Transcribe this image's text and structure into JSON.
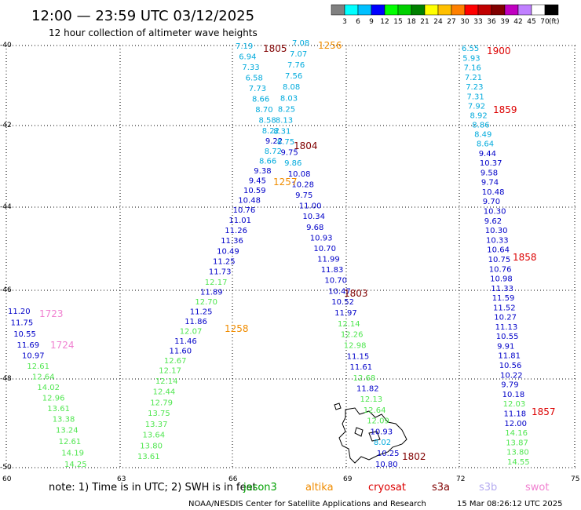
{
  "title": "12:00 — 23:59 UTC 03/12/2025",
  "subtitle": "12 hour collection of altimeter wave heights",
  "scale": {
    "labels": [
      "3",
      "6",
      "9",
      "12",
      "15",
      "18",
      "21",
      "24",
      "27",
      "30",
      "33",
      "36",
      "39",
      "42",
      "45",
      "70"
    ],
    "unit": "(ft)",
    "colors": [
      "#808080",
      "#00ffff",
      "#00c0ff",
      "#0000ff",
      "#00ff00",
      "#00d000",
      "#008000",
      "#ffff00",
      "#ffc000",
      "#ff8000",
      "#ff0000",
      "#c00000",
      "#800000",
      "#c000c0",
      "#c080ff",
      "#ffffff",
      "#000000"
    ]
  },
  "axes": {
    "lat_labels": [
      "-40",
      "-42",
      "-44",
      "-46",
      "-48",
      "-50"
    ],
    "lon_labels": [
      "60",
      "63",
      "66",
      "69",
      "72",
      "75"
    ]
  },
  "tracks": [
    {
      "name": "t1",
      "color": "#0000c8",
      "items": [
        {
          "t": "7.19",
          "c": "#00aadc"
        },
        {
          "t": "6.94",
          "c": "#00aadc"
        },
        {
          "t": "7.33",
          "c": "#00aadc"
        },
        {
          "t": "6.58",
          "c": "#00aadc"
        },
        {
          "t": "7.73",
          "c": "#00aadc"
        },
        {
          "t": "8.66",
          "c": "#00aadc"
        },
        {
          "t": "8.70",
          "c": "#00aadc"
        },
        {
          "t": "8.58",
          "c": "#00aadc"
        },
        {
          "t": "8.22",
          "c": "#00aadc"
        },
        {
          "t": "9.22",
          "c": "#0000c8"
        },
        {
          "t": "8.72",
          "c": "#00aadc"
        },
        {
          "t": "8.66",
          "c": "#00aadc"
        },
        {
          "t": "9.38",
          "c": "#0000c8"
        },
        {
          "t": "9.45",
          "c": "#0000c8"
        },
        {
          "t": "10.59",
          "c": "#0000c8"
        },
        {
          "t": "10.48",
          "c": "#0000c8"
        },
        {
          "t": "10.76",
          "c": "#0000c8"
        },
        {
          "t": "11.01",
          "c": "#0000c8"
        },
        {
          "t": "11.26",
          "c": "#0000c8"
        },
        {
          "t": "11.36",
          "c": "#0000c8"
        },
        {
          "t": "10.49",
          "c": "#0000c8"
        },
        {
          "t": "11.25",
          "c": "#0000c8"
        },
        {
          "t": "11.73",
          "c": "#0000c8"
        },
        {
          "t": "12.17",
          "c": "#50e650"
        },
        {
          "t": "11.89",
          "c": "#0000c8"
        },
        {
          "t": "12.70",
          "c": "#50e650"
        },
        {
          "t": "11.25",
          "c": "#0000c8"
        },
        {
          "t": "11.86",
          "c": "#0000c8"
        },
        {
          "t": "12.07",
          "c": "#50e650"
        },
        {
          "t": "11.46",
          "c": "#0000c8"
        },
        {
          "t": "11.60",
          "c": "#0000c8"
        },
        {
          "t": "12.67",
          "c": "#50e650"
        },
        {
          "t": "12.17",
          "c": "#50e650"
        },
        {
          "t": "12.14",
          "c": "#50e650"
        },
        {
          "t": "12.44",
          "c": "#50e650"
        },
        {
          "t": "12.79",
          "c": "#50e650"
        },
        {
          "t": "13.75",
          "c": "#50e650"
        },
        {
          "t": "13.37",
          "c": "#50e650"
        },
        {
          "t": "13.64",
          "c": "#50e650"
        },
        {
          "t": "13.80",
          "c": "#50e650"
        },
        {
          "t": "13.61",
          "c": "#50e650"
        }
      ]
    },
    {
      "name": "t2",
      "color": "#0000c8",
      "items": [
        {
          "t": "7.08",
          "c": "#00aadc"
        },
        {
          "t": "7.07",
          "c": "#00aadc"
        },
        {
          "t": "7.76",
          "c": "#00aadc"
        },
        {
          "t": "7.56",
          "c": "#00aadc"
        },
        {
          "t": "8.08",
          "c": "#00aadc"
        },
        {
          "t": "8.03",
          "c": "#00aadc"
        },
        {
          "t": "8.25",
          "c": "#00aadc"
        },
        {
          "t": "8.13",
          "c": "#00aadc"
        },
        {
          "t": "8.31",
          "c": "#00aadc"
        },
        {
          "t": "8.75",
          "c": "#00aadc"
        },
        {
          "t": "9.75",
          "c": "#0000c8"
        },
        {
          "t": "9.86",
          "c": "#00aadc"
        },
        {
          "t": "10.08",
          "c": "#0000c8"
        },
        {
          "t": "10.28",
          "c": "#0000c8"
        },
        {
          "t": "9.75",
          "c": "#0000c8"
        },
        {
          "t": "11.00",
          "c": "#0000c8"
        },
        {
          "t": "10.34",
          "c": "#0000c8"
        },
        {
          "t": "9.68",
          "c": "#0000c8"
        },
        {
          "t": "10.93",
          "c": "#0000c8"
        },
        {
          "t": "10.70",
          "c": "#0000c8"
        },
        {
          "t": "11.99",
          "c": "#0000c8"
        },
        {
          "t": "11.83",
          "c": "#0000c8"
        },
        {
          "t": "10.70",
          "c": "#0000c8"
        },
        {
          "t": "10.47",
          "c": "#0000c8"
        },
        {
          "t": "10.52",
          "c": "#0000c8"
        },
        {
          "t": "11.97",
          "c": "#0000c8"
        },
        {
          "t": "12.14",
          "c": "#50e650"
        },
        {
          "t": "12.26",
          "c": "#50e650"
        },
        {
          "t": "12.98",
          "c": "#50e650"
        },
        {
          "t": "11.15",
          "c": "#0000c8"
        },
        {
          "t": "11.61",
          "c": "#0000c8"
        },
        {
          "t": "12.68",
          "c": "#50e650"
        },
        {
          "t": "11.82",
          "c": "#0000c8"
        },
        {
          "t": "12.13",
          "c": "#50e650"
        },
        {
          "t": "12.64",
          "c": "#50e650"
        },
        {
          "t": "12.09",
          "c": "#50e650"
        },
        {
          "t": "10.93",
          "c": "#0000c8"
        },
        {
          "t": "8.02",
          "c": "#00aadc"
        },
        {
          "t": "10.25",
          "c": "#0000c8"
        },
        {
          "t": "10.80",
          "c": "#0000c8"
        }
      ]
    },
    {
      "name": "t3",
      "color": "#0000c8",
      "items": [
        {
          "t": "6.55",
          "c": "#00aadc"
        },
        {
          "t": "5.93",
          "c": "#00aadc"
        },
        {
          "t": "7.16",
          "c": "#00aadc"
        },
        {
          "t": "7.21",
          "c": "#00aadc"
        },
        {
          "t": "7.23",
          "c": "#00aadc"
        },
        {
          "t": "7.31",
          "c": "#00aadc"
        },
        {
          "t": "7.92",
          "c": "#00aadc"
        },
        {
          "t": "8.92",
          "c": "#00aadc"
        },
        {
          "t": "8.86",
          "c": "#00aadc"
        },
        {
          "t": "8.49",
          "c": "#00aadc"
        },
        {
          "t": "8.64",
          "c": "#00aadc"
        },
        {
          "t": "9.44",
          "c": "#0000c8"
        },
        {
          "t": "10.37",
          "c": "#0000c8"
        },
        {
          "t": "9.58",
          "c": "#0000c8"
        },
        {
          "t": "9.74",
          "c": "#0000c8"
        },
        {
          "t": "10.48",
          "c": "#0000c8"
        },
        {
          "t": "9.70",
          "c": "#0000c8"
        },
        {
          "t": "10.30",
          "c": "#0000c8"
        },
        {
          "t": "9.62",
          "c": "#0000c8"
        },
        {
          "t": "10.30",
          "c": "#0000c8"
        },
        {
          "t": "10.33",
          "c": "#0000c8"
        },
        {
          "t": "10.64",
          "c": "#0000c8"
        },
        {
          "t": "10.75",
          "c": "#0000c8"
        },
        {
          "t": "10.76",
          "c": "#0000c8"
        },
        {
          "t": "10.98",
          "c": "#0000c8"
        },
        {
          "t": "11.33",
          "c": "#0000c8"
        },
        {
          "t": "11.59",
          "c": "#0000c8"
        },
        {
          "t": "11.52",
          "c": "#0000c8"
        },
        {
          "t": "10.27",
          "c": "#0000c8"
        },
        {
          "t": "11.13",
          "c": "#0000c8"
        },
        {
          "t": "10.55",
          "c": "#0000c8"
        },
        {
          "t": "9.91",
          "c": "#0000c8"
        },
        {
          "t": "11.81",
          "c": "#0000c8"
        },
        {
          "t": "10.56",
          "c": "#0000c8"
        },
        {
          "t": "10.22",
          "c": "#0000c8"
        },
        {
          "t": "9.79",
          "c": "#0000c8"
        },
        {
          "t": "10.18",
          "c": "#0000c8"
        },
        {
          "t": "12.03",
          "c": "#50e650"
        },
        {
          "t": "11.18",
          "c": "#0000c8"
        },
        {
          "t": "12.00",
          "c": "#0000c8"
        },
        {
          "t": "14.16",
          "c": "#50e650"
        },
        {
          "t": "13.87",
          "c": "#50e650"
        },
        {
          "t": "13.80",
          "c": "#50e650"
        },
        {
          "t": "14.55",
          "c": "#50e650"
        }
      ]
    },
    {
      "name": "t4",
      "color": "#0000c8",
      "items": [
        {
          "t": "11.20",
          "c": "#0000c8"
        },
        {
          "t": "11.75",
          "c": "#0000c8"
        },
        {
          "t": "10.55",
          "c": "#0000c8"
        },
        {
          "t": "11.69",
          "c": "#0000c8"
        },
        {
          "t": "10.97",
          "c": "#0000c8"
        },
        {
          "t": "12.61",
          "c": "#50e650"
        },
        {
          "t": "12.64",
          "c": "#50e650"
        },
        {
          "t": "14.02",
          "c": "#50e650"
        },
        {
          "t": "12.96",
          "c": "#50e650"
        },
        {
          "t": "13.61",
          "c": "#50e650"
        },
        {
          "t": "13.38",
          "c": "#50e650"
        },
        {
          "t": "13.24",
          "c": "#50e650"
        },
        {
          "t": "12.61",
          "c": "#50e650"
        },
        {
          "t": "14.19",
          "c": "#50e650"
        },
        {
          "t": "14.25",
          "c": "#50e650"
        }
      ]
    }
  ],
  "time_labels": [
    {
      "t": "1805",
      "c": "#800000"
    },
    {
      "t": "1256",
      "c": "#f08c00"
    },
    {
      "t": "1900",
      "c": "#dc0000"
    },
    {
      "t": "1859",
      "c": "#dc0000"
    },
    {
      "t": "1804",
      "c": "#800000"
    },
    {
      "t": "1257",
      "c": "#f08c00"
    },
    {
      "t": "1858",
      "c": "#dc0000"
    },
    {
      "t": "1803",
      "c": "#800000"
    },
    {
      "t": "1723",
      "c": "#f080d0"
    },
    {
      "t": "1258",
      "c": "#f08c00"
    },
    {
      "t": "1724",
      "c": "#f080d0"
    },
    {
      "t": "1857",
      "c": "#dc0000"
    },
    {
      "t": "1802",
      "c": "#800000"
    }
  ],
  "note": "note:  1) Time is in UTC; 2) SWH is in feet",
  "satellites": [
    {
      "name": "jason3",
      "color": "#00a000"
    },
    {
      "name": "altika",
      "color": "#f08c00"
    },
    {
      "name": "cryosat",
      "color": "#dc0000"
    },
    {
      "name": "s3a",
      "color": "#800000"
    },
    {
      "name": "s3b",
      "color": "#b4aaf0"
    },
    {
      "name": "swot",
      "color": "#f080d0"
    }
  ],
  "credit": "NOAA/NESDIS Center for Satellite Applications and Research",
  "timestamp": "15 Mar 08:26:12 UTC 2025"
}
